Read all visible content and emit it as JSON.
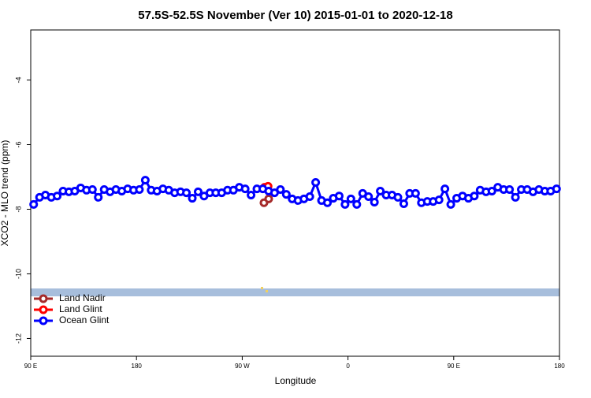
{
  "chart_data": {
    "type": "line",
    "title": "57.5S-52.5S November (Ver 10)   2015-01-01 to 2020-12-18",
    "x_label": "Longitude",
    "y_label": "XCO2 - MLO trend (ppm)",
    "xlim": [
      90,
      540
    ],
    "ylim": [
      -12.55,
      -2.45
    ],
    "xticks": [
      {
        "value": 90,
        "label": "90 E"
      },
      180,
      {
        "value": 270,
        "label": "90 W"
      },
      {
        "value": 360,
        "label": "0"
      },
      {
        "value": 450,
        "label": "90 E"
      },
      {
        "value": 540,
        "label": "180"
      }
    ],
    "yticks": [
      -12,
      -10,
      -8,
      -6,
      -4
    ],
    "legend": "bottom-left",
    "series": [
      {
        "name": "Land Nadir",
        "color": "#a52a2a",
        "x": [
          288.5,
          292.5
        ],
        "values": [
          -7.8,
          -7.68
        ]
      },
      {
        "name": "Land Glint",
        "color": "#ff0000",
        "x": [
          289,
          292
        ],
        "values": [
          -7.32,
          -7.29
        ]
      },
      {
        "name": "Ocean Glint",
        "color": "#0000ff",
        "x": [
          92.5,
          97.5,
          102.5,
          107.5,
          112.5,
          117.5,
          122.5,
          127.5,
          132.5,
          137.5,
          142.5,
          147.5,
          152.5,
          157.5,
          162.5,
          167.5,
          172.5,
          177.5,
          182.5,
          187.5,
          192.5,
          197.5,
          202.5,
          207.5,
          212.5,
          217.5,
          222.5,
          227.5,
          232.5,
          237.5,
          242.5,
          247.5,
          252.5,
          257.5,
          262.5,
          267.5,
          272.5,
          277.5,
          282.5,
          287.5,
          292.5,
          297.5,
          302.5,
          307.5,
          312.5,
          317.5,
          322.5,
          327.5,
          332.5,
          337.5,
          342.5,
          347.5,
          352.5,
          357.5,
          362.5,
          367.5,
          372.5,
          377.5,
          382.5,
          387.5,
          392.5,
          397.5,
          402.5,
          407.5,
          412.5,
          417.5,
          422.5,
          427.5,
          432.5,
          437.5,
          442.5,
          447.5,
          452.5,
          457.5,
          462.5,
          467.5,
          472.5,
          477.5,
          482.5,
          487.5,
          492.5,
          497.5,
          502.5,
          507.5,
          512.5,
          517.5,
          522.5,
          527.5,
          532.5,
          537.5
        ],
        "values": [
          -7.85,
          -7.63,
          -7.56,
          -7.63,
          -7.59,
          -7.44,
          -7.46,
          -7.44,
          -7.34,
          -7.41,
          -7.39,
          -7.63,
          -7.39,
          -7.46,
          -7.39,
          -7.44,
          -7.37,
          -7.41,
          -7.39,
          -7.1,
          -7.41,
          -7.44,
          -7.37,
          -7.41,
          -7.49,
          -7.46,
          -7.49,
          -7.66,
          -7.46,
          -7.59,
          -7.49,
          -7.49,
          -7.49,
          -7.41,
          -7.41,
          -7.32,
          -7.37,
          -7.56,
          -7.37,
          -7.37,
          -7.44,
          -7.49,
          -7.39,
          -7.54,
          -7.68,
          -7.73,
          -7.68,
          -7.61,
          -7.17,
          -7.73,
          -7.8,
          -7.66,
          -7.59,
          -7.85,
          -7.68,
          -7.85,
          -7.51,
          -7.61,
          -7.78,
          -7.44,
          -7.56,
          -7.56,
          -7.63,
          -7.83,
          -7.51,
          -7.51,
          -7.8,
          -7.76,
          -7.76,
          -7.71,
          -7.37,
          -7.85,
          -7.66,
          -7.59,
          -7.66,
          -7.59,
          -7.41,
          -7.46,
          -7.44,
          -7.32,
          -7.39,
          -7.39,
          -7.63,
          -7.39,
          -7.39,
          -7.46,
          -7.39,
          -7.44,
          -7.44,
          -7.37
        ]
      }
    ]
  }
}
